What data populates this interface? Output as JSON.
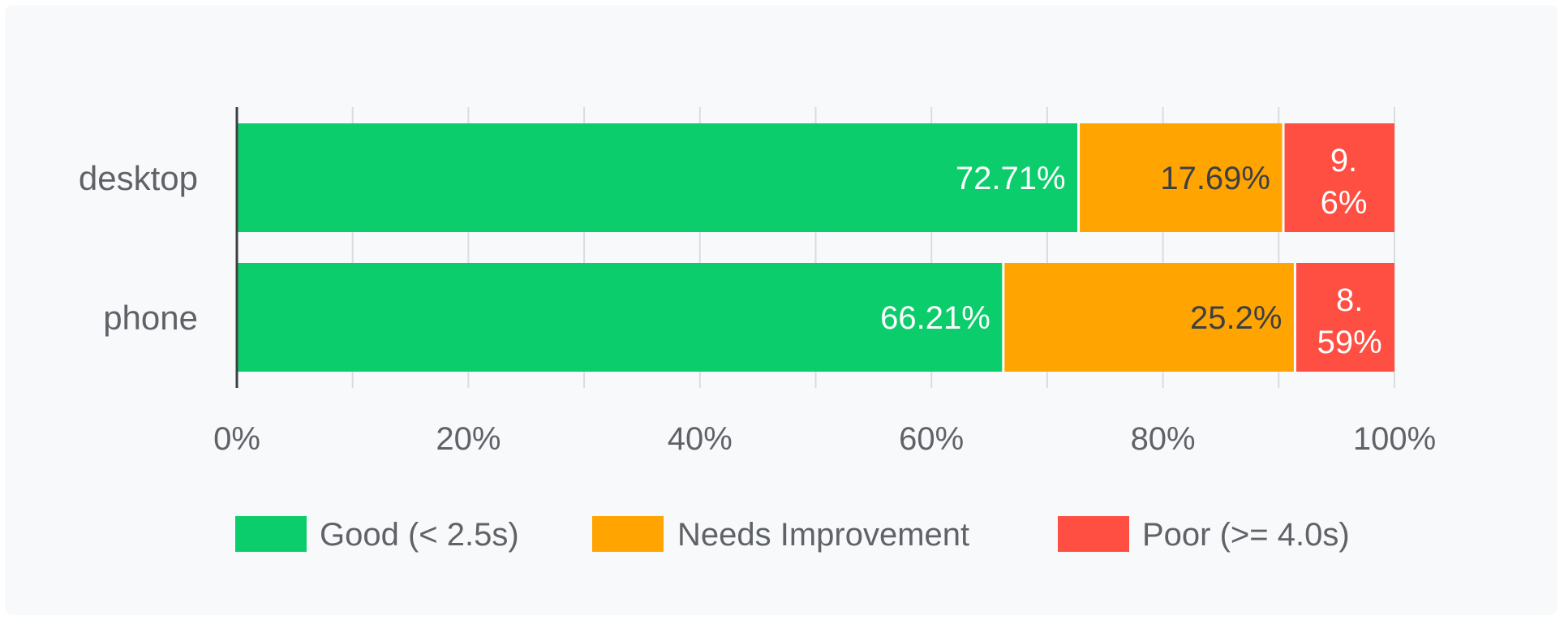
{
  "chart_data": {
    "type": "bar",
    "orientation": "horizontal",
    "stacked": true,
    "categories": [
      "desktop",
      "phone"
    ],
    "series": [
      {
        "name": "Good (< 2.5s)",
        "values": [
          72.71,
          66.21
        ],
        "labels": [
          "72.71%",
          "66.21%"
        ],
        "color": "#0ccd6b",
        "label_color": "#ffffff"
      },
      {
        "name": "Needs Improvement",
        "values": [
          17.69,
          25.2
        ],
        "labels": [
          "17.69%",
          "25.2%"
        ],
        "color": "#ffa400",
        "label_color": "#3c4043"
      },
      {
        "name": "Poor (>= 4.0s)",
        "values": [
          9.6,
          8.59
        ],
        "labels": [
          "9.6%",
          "8.59%"
        ],
        "color": "#ff4e42",
        "label_color": "#ffffff"
      }
    ],
    "xlim": [
      0,
      100
    ],
    "x_ticks": [
      0,
      20,
      40,
      60,
      80,
      100
    ],
    "x_tick_labels": [
      "0%",
      "20%",
      "40%",
      "60%",
      "80%",
      "100%"
    ],
    "grid": true,
    "legend": "bottom"
  }
}
